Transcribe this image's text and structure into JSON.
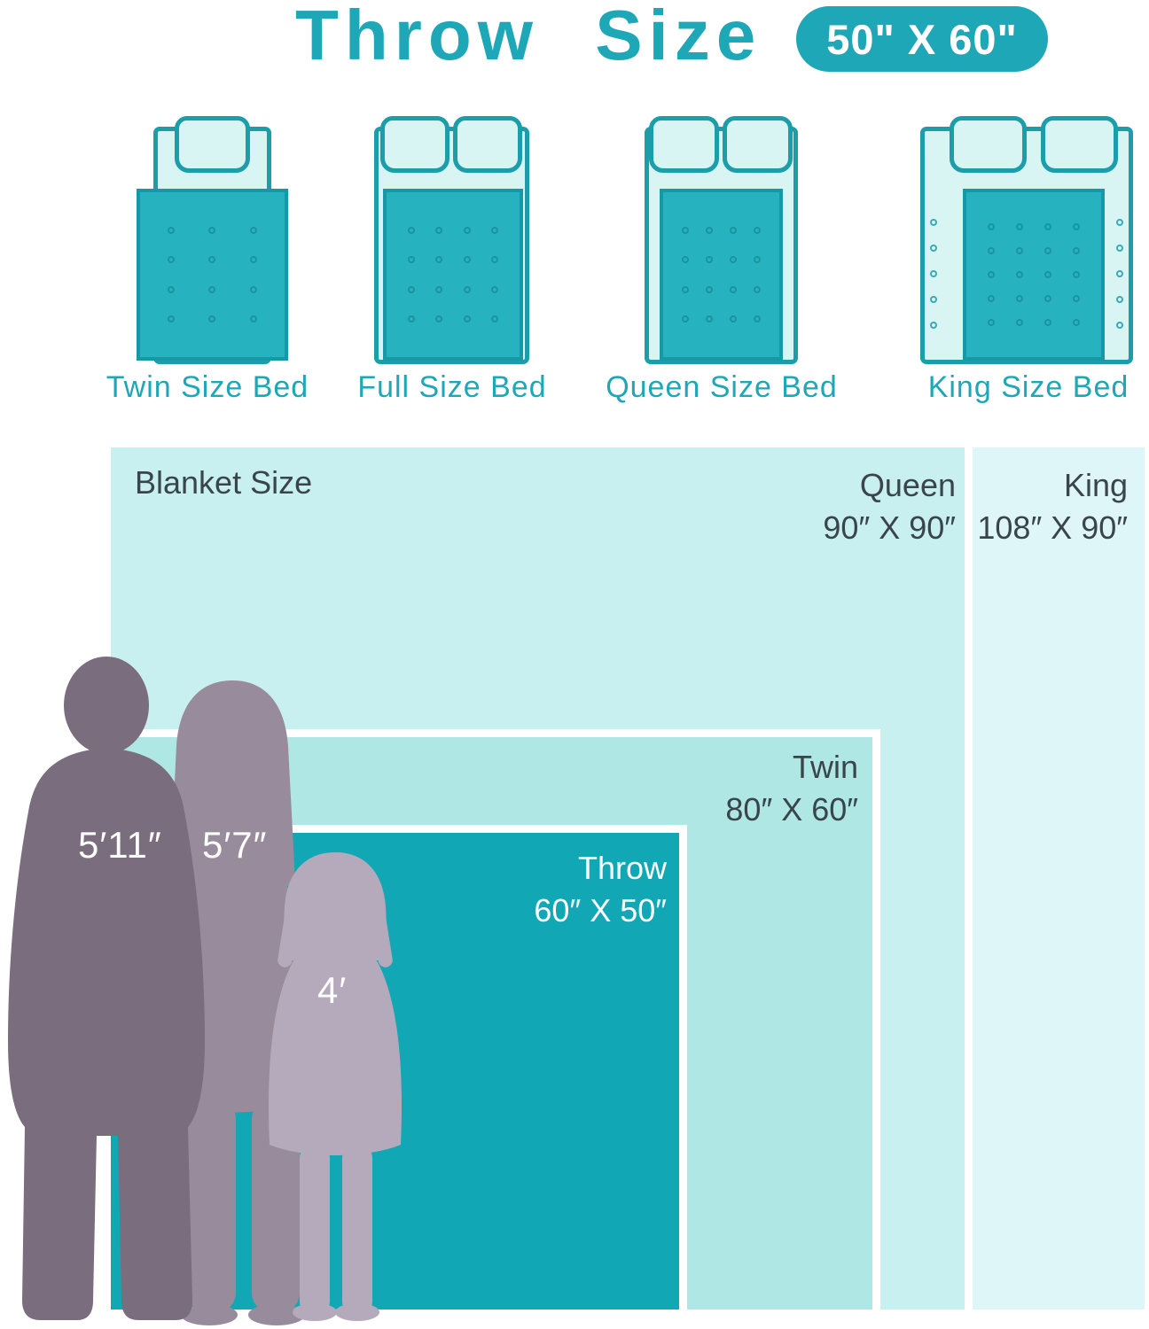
{
  "title": {
    "text": "Throw Size",
    "badge": "50\" X 60\""
  },
  "beds": [
    {
      "label": "Twin Size Bed",
      "pillows": 1,
      "dots": {
        "cols": 3,
        "rows": 4
      }
    },
    {
      "label": "Full Size Bed",
      "pillows": 2,
      "dots": {
        "cols": 4,
        "rows": 4
      }
    },
    {
      "label": "Queen Size Bed",
      "pillows": 2,
      "dots": {
        "cols": 4,
        "rows": 4
      }
    },
    {
      "label": "King Size Bed",
      "pillows": 2,
      "dots": {
        "cols": 4,
        "rows": 5
      },
      "side_dots": {
        "cols": 1,
        "rows": 5
      }
    }
  ],
  "comparison": {
    "heading": "Blanket Size",
    "sizes": [
      {
        "name": "King",
        "dimensions": "108″ X 90″"
      },
      {
        "name": "Queen",
        "dimensions": "90″ X 90″"
      },
      {
        "name": "Twin",
        "dimensions": "80″ X 60″"
      },
      {
        "name": "Throw",
        "dimensions": "60″ X 50″"
      }
    ]
  },
  "people": [
    {
      "role": "man",
      "height": "5′11″"
    },
    {
      "role": "woman",
      "height": "5′7″"
    },
    {
      "role": "girl",
      "height": "4′"
    }
  ],
  "colors": {
    "accent_teal": "#1ea7b6",
    "throw_fill": "#12a7b5",
    "twin_fill": "#aee7e3",
    "queen_fill": "#c9f0f1",
    "king_fill": "#dff6f8",
    "man_silhouette": "#7a6d7d",
    "woman_silhouette": "#988b9c",
    "girl_silhouette": "#b5aabb",
    "label_text": "#39454b"
  }
}
